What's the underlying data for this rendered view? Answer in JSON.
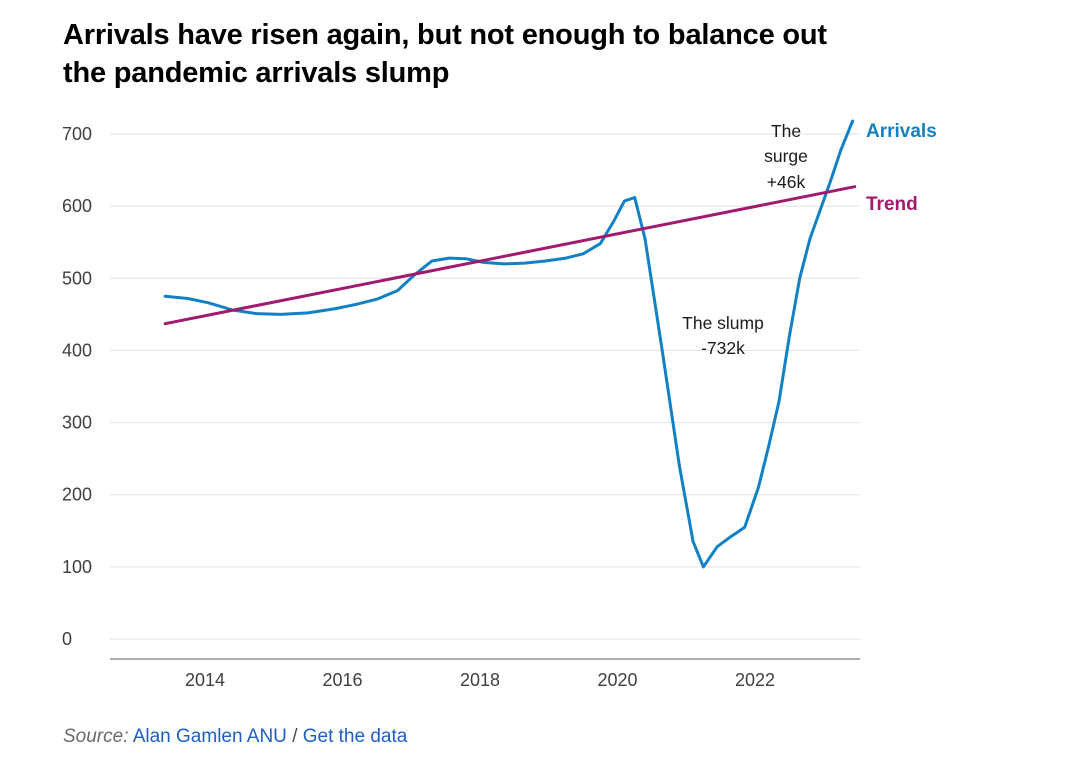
{
  "title": "Arrivals have risen again, but not enough to balance out\nthe pandemic arrivals slump",
  "chart_data": {
    "type": "line",
    "title": "Arrivals have risen again, but not enough to balance out the pandemic arrivals slump",
    "xlabel": "",
    "ylabel": "",
    "x_ticks": [
      2014,
      2016,
      2018,
      2020,
      2022
    ],
    "y_ticks": [
      0,
      100,
      200,
      300,
      400,
      500,
      600,
      700
    ],
    "xlim": [
      2013.4,
      2023.5
    ],
    "ylim": [
      0,
      700
    ],
    "grid": "horizontal",
    "legend_position": "right-of-line-ends",
    "series": [
      {
        "name": "Arrivals",
        "color": "#1280c4",
        "points": [
          [
            2013.42,
            475
          ],
          [
            2013.75,
            472
          ],
          [
            2014.05,
            466
          ],
          [
            2014.4,
            456
          ],
          [
            2014.75,
            451
          ],
          [
            2015.1,
            450
          ],
          [
            2015.5,
            452
          ],
          [
            2015.9,
            458
          ],
          [
            2016.2,
            464
          ],
          [
            2016.5,
            471
          ],
          [
            2016.8,
            483
          ],
          [
            2017.05,
            505
          ],
          [
            2017.3,
            524
          ],
          [
            2017.55,
            528
          ],
          [
            2017.8,
            527
          ],
          [
            2018.05,
            522
          ],
          [
            2018.35,
            520
          ],
          [
            2018.65,
            521
          ],
          [
            2018.95,
            524
          ],
          [
            2019.25,
            528
          ],
          [
            2019.5,
            534
          ],
          [
            2019.75,
            548
          ],
          [
            2019.95,
            580
          ],
          [
            2020.1,
            607
          ],
          [
            2020.25,
            612
          ],
          [
            2020.4,
            555
          ],
          [
            2020.65,
            400
          ],
          [
            2020.9,
            240
          ],
          [
            2021.1,
            135
          ],
          [
            2021.25,
            100
          ],
          [
            2021.45,
            128
          ],
          [
            2021.65,
            142
          ],
          [
            2021.85,
            155
          ],
          [
            2022.05,
            210
          ],
          [
            2022.2,
            268
          ],
          [
            2022.35,
            330
          ],
          [
            2022.5,
            420
          ],
          [
            2022.65,
            500
          ],
          [
            2022.8,
            555
          ],
          [
            2022.95,
            595
          ],
          [
            2023.1,
            635
          ],
          [
            2023.25,
            678
          ],
          [
            2023.42,
            718
          ]
        ]
      },
      {
        "name": "Trend",
        "color": "#a01a6e",
        "points": [
          [
            2013.42,
            437
          ],
          [
            2023.45,
            627
          ]
        ]
      }
    ],
    "annotations": [
      {
        "text": "The\nsurge\n+46k",
        "x": 2022.45,
        "y": 668
      },
      {
        "text": "The slump\n-732k",
        "x": 2021.53,
        "y": 420
      }
    ]
  },
  "source": {
    "prefix": "Source:",
    "author": "Alan Gamlen ANU",
    "separator": "/",
    "data_link": "Get the data",
    "link_color": "#1d5fc2"
  },
  "colors": {
    "arrivals_line": "#1280c4",
    "trend_line": "#a01a6e",
    "gridline": "#e2e2e2",
    "axis_line": "#8f8f8f",
    "tick_label": "#3f3f3f"
  }
}
